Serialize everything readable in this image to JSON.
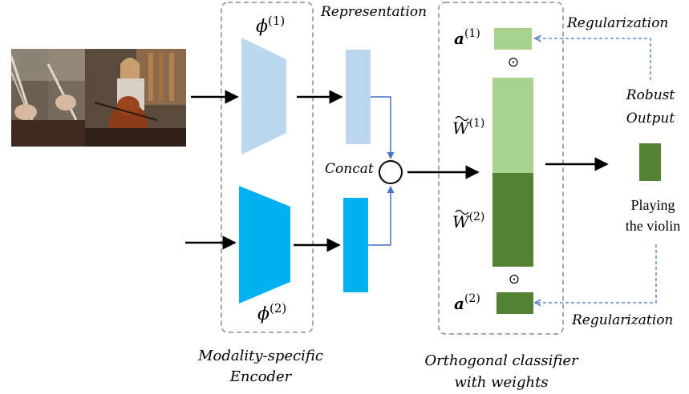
{
  "labels": {
    "phi1_base": "ϕ",
    "phi1_sup": "(1)",
    "phi2_base": "ϕ",
    "phi2_sup": "(2)",
    "representation": "Representation",
    "concat": "Concat",
    "encoder_line1": "Modality-specific",
    "encoder_line2": "Encoder",
    "a1_base": "a",
    "a1_sup": "(1)",
    "a2_base": "a",
    "a2_sup": "(2)",
    "w1_base": "W",
    "w1_sup": "(1)",
    "w2_base": "W",
    "w2_sup": "(2)",
    "odot_top": "⊙",
    "odot_bottom": "⊙",
    "regularization_top": "Regularization",
    "regularization_bottom": "Regularization",
    "robust_line1": "Robust",
    "robust_line2": "Output",
    "output_line1": "Playing",
    "output_line2": "the violin",
    "classifier_line1": "Orthogonal classifier",
    "classifier_line2": "with weights"
  },
  "colors": {
    "visual_light": "#bdd7ee",
    "audio_blue": "#00b0f0",
    "light_green": "#a9d18e",
    "dark_green": "#548235",
    "arrow_blue": "#4472c4",
    "dash_gray": "#8c8c8c"
  }
}
